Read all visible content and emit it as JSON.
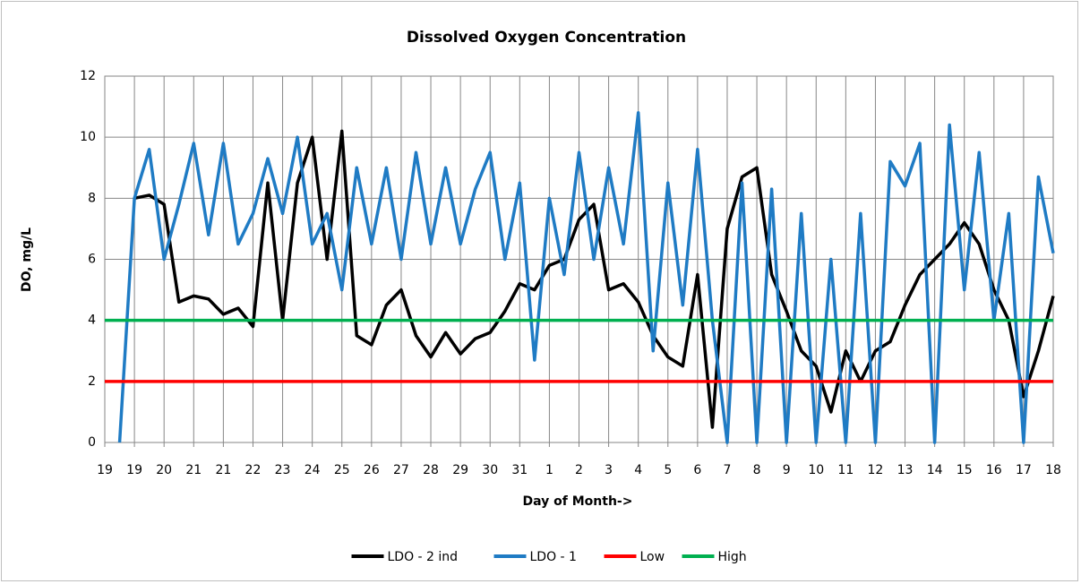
{
  "chart_data": {
    "type": "line",
    "title": "Dissolved Oxygen Concentration",
    "x_label": "Day of Month->",
    "y_label": "DO, mg/L",
    "x": [
      0,
      0.5,
      1,
      1.5,
      2,
      2.5,
      3,
      3.5,
      4,
      4.5,
      5,
      5.5,
      6,
      6.5,
      7,
      7.5,
      8,
      8.5,
      9,
      9.5,
      10,
      10.5,
      11,
      11.5,
      12,
      12.5,
      13,
      13.5,
      14,
      14.5,
      15,
      15.5,
      16,
      16.5,
      17,
      17.5,
      18,
      18.5,
      19,
      19.5,
      20,
      20.5,
      21,
      21.5,
      22,
      22.5,
      23,
      23.5,
      24,
      24.5,
      25,
      25.5,
      26,
      26.5,
      27,
      27.5,
      28,
      28.5,
      29,
      29.5,
      30,
      30.5,
      31,
      31.5,
      32
    ],
    "series": [
      {
        "name": "LDO - 2 ind",
        "color": "#000000",
        "values": [
          null,
          null,
          8.0,
          8.1,
          7.8,
          4.6,
          4.8,
          4.7,
          4.2,
          4.4,
          3.8,
          8.5,
          4.0,
          8.5,
          10.0,
          6.0,
          10.2,
          3.5,
          3.2,
          4.5,
          5.0,
          3.5,
          2.8,
          3.6,
          2.9,
          3.4,
          3.6,
          4.3,
          5.2,
          5.0,
          5.8,
          6.0,
          7.3,
          7.8,
          5.0,
          5.2,
          4.6,
          3.5,
          2.8,
          2.5,
          5.5,
          0.5,
          7.0,
          8.7,
          9.0,
          5.5,
          4.3,
          3.0,
          2.5,
          1.0,
          3.0,
          2.0,
          3.0,
          3.3,
          4.5,
          5.5,
          6.0,
          6.5,
          7.2,
          6.5,
          5.0,
          4.0,
          1.5,
          3.0,
          4.8
        ]
      },
      {
        "name": "LDO - 1",
        "color": "#1f7bc4",
        "values": [
          null,
          0,
          8.0,
          9.6,
          6.0,
          7.8,
          9.8,
          6.8,
          9.8,
          6.5,
          7.5,
          9.3,
          7.5,
          10.0,
          6.5,
          7.5,
          5.0,
          9.0,
          6.5,
          9.0,
          6.0,
          9.5,
          6.5,
          9.0,
          6.5,
          8.3,
          9.5,
          6.0,
          8.5,
          2.7,
          8.0,
          5.5,
          9.5,
          6.0,
          9.0,
          6.5,
          10.8,
          3.0,
          8.5,
          4.5,
          9.6,
          4.0,
          0,
          8.5,
          0,
          8.3,
          0,
          7.5,
          0,
          6.0,
          0,
          7.5,
          0,
          9.2,
          8.4,
          9.8,
          0,
          10.4,
          5.0,
          9.5,
          4.0,
          7.5,
          0,
          8.7,
          6.2
        ]
      },
      {
        "name": "Low",
        "color": "#ff0000",
        "values": [
          2,
          2,
          2,
          2,
          2,
          2,
          2,
          2,
          2,
          2,
          2,
          2,
          2,
          2,
          2,
          2,
          2,
          2,
          2,
          2,
          2,
          2,
          2,
          2,
          2,
          2,
          2,
          2,
          2,
          2,
          2,
          2,
          2,
          2,
          2,
          2,
          2,
          2,
          2,
          2,
          2,
          2,
          2,
          2,
          2,
          2,
          2,
          2,
          2,
          2,
          2,
          2,
          2,
          2,
          2,
          2,
          2,
          2,
          2,
          2,
          2,
          2,
          2,
          2,
          2
        ]
      },
      {
        "name": "High",
        "color": "#00b050",
        "values": [
          4,
          4,
          4,
          4,
          4,
          4,
          4,
          4,
          4,
          4,
          4,
          4,
          4,
          4,
          4,
          4,
          4,
          4,
          4,
          4,
          4,
          4,
          4,
          4,
          4,
          4,
          4,
          4,
          4,
          4,
          4,
          4,
          4,
          4,
          4,
          4,
          4,
          4,
          4,
          4,
          4,
          4,
          4,
          4,
          4,
          4,
          4,
          4,
          4,
          4,
          4,
          4,
          4,
          4,
          4,
          4,
          4,
          4,
          4,
          4,
          4,
          4,
          4,
          4,
          4
        ]
      }
    ],
    "xlim": [
      0,
      32
    ],
    "xticks": [
      {
        "value": 0,
        "label": "19"
      },
      {
        "value": 1,
        "label": "19"
      },
      {
        "value": 2,
        "label": "20"
      },
      {
        "value": 3,
        "label": "21"
      },
      {
        "value": 4,
        "label": "21"
      },
      {
        "value": 5,
        "label": "22"
      },
      {
        "value": 6,
        "label": "23"
      },
      {
        "value": 7,
        "label": "24"
      },
      {
        "value": 8,
        "label": "25"
      },
      {
        "value": 9,
        "label": "26"
      },
      {
        "value": 10,
        "label": "27"
      },
      {
        "value": 11,
        "label": "28"
      },
      {
        "value": 12,
        "label": "29"
      },
      {
        "value": 13,
        "label": "30"
      },
      {
        "value": 14,
        "label": "31"
      },
      {
        "value": 15,
        "label": "1"
      },
      {
        "value": 16,
        "label": "2"
      },
      {
        "value": 17,
        "label": "3"
      },
      {
        "value": 18,
        "label": "4"
      },
      {
        "value": 19,
        "label": "5"
      },
      {
        "value": 20,
        "label": "6"
      },
      {
        "value": 21,
        "label": "7"
      },
      {
        "value": 22,
        "label": "8"
      },
      {
        "value": 23,
        "label": "9"
      },
      {
        "value": 24,
        "label": "10"
      },
      {
        "value": 25,
        "label": "11"
      },
      {
        "value": 26,
        "label": "12"
      },
      {
        "value": 27,
        "label": "13"
      },
      {
        "value": 28,
        "label": "14"
      },
      {
        "value": 29,
        "label": "15"
      },
      {
        "value": 30,
        "label": "16"
      },
      {
        "value": 31,
        "label": "17"
      },
      {
        "value": 32,
        "label": "18"
      }
    ],
    "ylim": [
      0,
      12
    ],
    "yticks": [
      0,
      2,
      4,
      6,
      8,
      10,
      12
    ],
    "grid": true,
    "legend": "bottom"
  }
}
